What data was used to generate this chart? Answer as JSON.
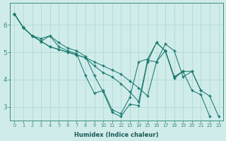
{
  "xlabel": "Humidex (Indice chaleur)",
  "background_color": "#d0ecea",
  "grid_color": "#b0d8d4",
  "line_color": "#1a7a6e",
  "marker_color": "#1a7a6e",
  "xlim": [
    -0.5,
    23.5
  ],
  "ylim": [
    2.5,
    6.8
  ],
  "xticks": [
    0,
    1,
    2,
    3,
    4,
    5,
    6,
    7,
    8,
    9,
    10,
    11,
    12,
    13,
    14,
    15,
    16,
    17,
    18,
    19,
    20,
    21,
    22,
    23
  ],
  "yticks": [
    3,
    4,
    5,
    6
  ],
  "series": [
    {
      "x": [
        0,
        1,
        2,
        3,
        4,
        5,
        6,
        7,
        8,
        9,
        10,
        11,
        12,
        13,
        14,
        15,
        16,
        17,
        18,
        19,
        20,
        21,
        22,
        23
      ],
      "y": [
        6.4,
        5.9,
        5.6,
        5.4,
        5.2,
        5.1,
        5.0,
        4.9,
        4.8,
        4.65,
        4.5,
        4.35,
        4.2,
        3.95,
        3.7,
        3.4,
        4.65,
        5.3,
        5.05,
        4.1,
        4.3,
        3.6,
        3.4,
        2.65
      ]
    },
    {
      "x": [
        0,
        1,
        2,
        3,
        4,
        5,
        6,
        7,
        8,
        9,
        10,
        11,
        12,
        13,
        14,
        15,
        16,
        17,
        18,
        19
      ],
      "y": [
        6.4,
        5.9,
        5.6,
        5.5,
        5.6,
        5.35,
        5.15,
        5.05,
        4.85,
        4.15,
        3.55,
        2.8,
        2.65,
        3.1,
        3.05,
        4.65,
        5.35,
        5.05,
        4.1,
        4.3
      ]
    },
    {
      "x": [
        0,
        1,
        2,
        3,
        4,
        5,
        6,
        7,
        8,
        9,
        10,
        11,
        12,
        13,
        14,
        15,
        16,
        17,
        18,
        19,
        20,
        21
      ],
      "y": [
        6.4,
        5.9,
        5.6,
        5.4,
        5.6,
        5.2,
        5.05,
        4.95,
        4.15,
        3.5,
        3.6,
        2.9,
        2.75,
        3.35,
        4.65,
        4.75,
        5.35,
        5.05,
        4.1,
        4.3,
        4.3,
        3.6
      ]
    },
    {
      "x": [
        0,
        1,
        2,
        3,
        4,
        5,
        6,
        7,
        8,
        9,
        10,
        11,
        12,
        13,
        14,
        15,
        16,
        17,
        18,
        19,
        20,
        21,
        22
      ],
      "y": [
        6.4,
        5.9,
        5.6,
        5.4,
        5.2,
        5.1,
        5.0,
        4.9,
        4.8,
        4.5,
        4.25,
        4.1,
        3.85,
        3.55,
        3.2,
        4.7,
        4.65,
        5.05,
        4.05,
        4.3,
        3.6,
        3.45,
        2.65
      ]
    }
  ]
}
